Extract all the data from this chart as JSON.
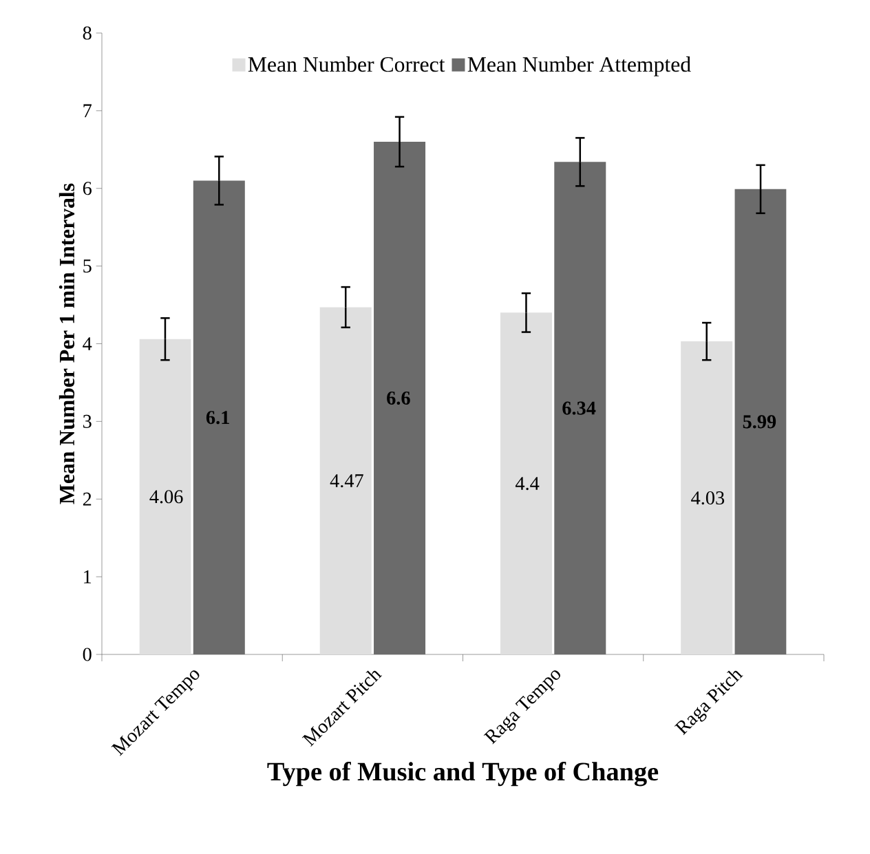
{
  "chart_data": {
    "type": "bar",
    "xlabel": "Type of Music and Type of Change",
    "ylabel": "Mean Number Per 1 min Intervals",
    "categories": [
      "Mozart Tempo",
      "Mozart Pitch",
      "Raga Tempo",
      "Raga  Pitch"
    ],
    "series": [
      {
        "name": "Mean Number Correct",
        "color": "#dfdfdf",
        "values": [
          4.06,
          4.47,
          4.4,
          4.03
        ],
        "errors": [
          0.27,
          0.26,
          0.25,
          0.24
        ]
      },
      {
        "name": "Mean Number Attempted",
        "color": "#6b6b6b",
        "values": [
          6.1,
          6.6,
          6.34,
          5.99
        ],
        "errors": [
          0.31,
          0.32,
          0.31,
          0.31
        ]
      }
    ],
    "ylim": [
      0,
      8
    ],
    "yticks": [
      0,
      1,
      2,
      3,
      4,
      5,
      6,
      7,
      8
    ],
    "data_labels": true,
    "legend": "top",
    "grid": false
  }
}
